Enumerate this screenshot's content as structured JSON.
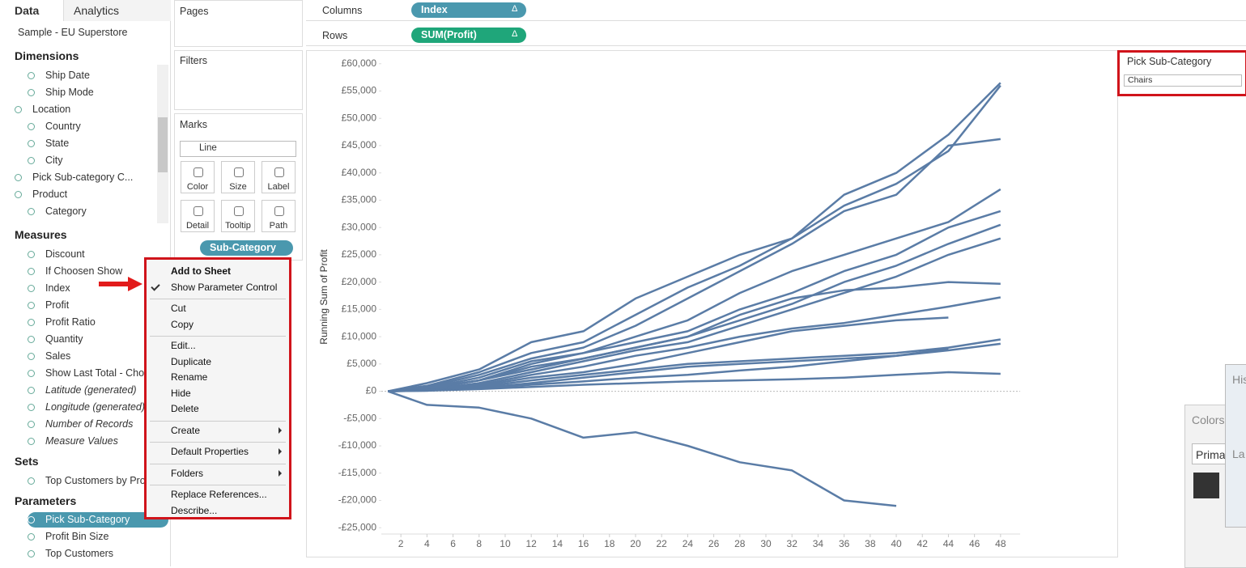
{
  "tabs": [
    "Data",
    "Analytics"
  ],
  "source": "Sample - EU Superstore",
  "dimensions": {
    "title": "Dimensions",
    "items": [
      {
        "label": "Ship Date",
        "level": 1
      },
      {
        "label": "Ship Mode",
        "level": 1
      },
      {
        "label": "Location",
        "level": 0
      },
      {
        "label": "Country",
        "level": 1
      },
      {
        "label": "State",
        "level": 1
      },
      {
        "label": "City",
        "level": 1
      },
      {
        "label": "Pick Sub-category C...",
        "level": 0
      },
      {
        "label": "Product",
        "level": 0
      },
      {
        "label": "Category",
        "level": 1
      }
    ]
  },
  "measures": {
    "title": "Measures",
    "items": [
      {
        "label": "Discount"
      },
      {
        "label": "If Choosen Show"
      },
      {
        "label": "Index"
      },
      {
        "label": "Profit"
      },
      {
        "label": "Profit Ratio"
      },
      {
        "label": "Quantity"
      },
      {
        "label": "Sales"
      },
      {
        "label": "Show Last Total  - Choos"
      },
      {
        "label": "Latitude (generated)",
        "italic": true
      },
      {
        "label": "Longitude (generated)",
        "italic": true
      },
      {
        "label": "Number of Records",
        "italic": true
      },
      {
        "label": "Measure Values",
        "italic": true
      }
    ]
  },
  "sets": {
    "title": "Sets",
    "items": [
      {
        "label": "Top Customers by Profit"
      }
    ]
  },
  "parameters": {
    "title": "Parameters",
    "items": [
      {
        "label": "Pick Sub-Category",
        "selected": true
      },
      {
        "label": "Profit Bin Size"
      },
      {
        "label": "Top Customers"
      }
    ]
  },
  "shelves": {
    "pages": "Pages",
    "filters": "Filters",
    "marks": "Marks",
    "mark_type": "Line",
    "buttons": [
      "Color",
      "Size",
      "Label",
      "Detail",
      "Tooltip",
      "Path"
    ],
    "detail_pill": "Sub-Category",
    "columns": {
      "label": "Columns",
      "pill": "Index",
      "icon": "Δ"
    },
    "rows": {
      "label": "Rows",
      "pill": "SUM(Profit)",
      "icon": "Δ"
    }
  },
  "context_menu": {
    "groups": [
      [
        {
          "label": "Add to Sheet",
          "bold": true
        },
        {
          "label": "Show Parameter Control",
          "checked": true
        }
      ],
      [
        {
          "label": "Cut"
        },
        {
          "label": "Copy"
        }
      ],
      [
        {
          "label": "Edit..."
        },
        {
          "label": "Duplicate"
        },
        {
          "label": "Rename"
        },
        {
          "label": "Hide"
        },
        {
          "label": "Delete"
        }
      ],
      [
        {
          "label": "Create",
          "submenu": true
        }
      ],
      [
        {
          "label": "Default Properties",
          "submenu": true
        }
      ],
      [
        {
          "label": "Folders",
          "submenu": true
        }
      ],
      [
        {
          "label": "Replace References..."
        },
        {
          "label": "Describe..."
        }
      ]
    ]
  },
  "parameter_control": {
    "title": "Pick Sub-Category",
    "value": "Chairs"
  },
  "background_windows": {
    "colors": "Colors",
    "primary": "Prima",
    "history": "His",
    "layers": "La"
  },
  "chart_data": {
    "type": "line",
    "y_label": "Running Sum of Profit",
    "color": "#5a7ca6",
    "grid": false,
    "x": [
      1,
      4,
      8,
      12,
      16,
      20,
      24,
      28,
      32,
      36,
      40,
      44,
      48
    ],
    "xlim": [
      0.5,
      49.5
    ],
    "xticks": [
      2,
      4,
      6,
      8,
      10,
      12,
      14,
      16,
      18,
      20,
      22,
      24,
      26,
      28,
      30,
      32,
      34,
      36,
      38,
      40,
      42,
      44,
      46,
      48
    ],
    "ylim": [
      -26000,
      61000
    ],
    "yticks": [
      {
        "value": -25000,
        "label": "-£25,000"
      },
      {
        "value": -20000,
        "label": "-£20,000"
      },
      {
        "value": -15000,
        "label": "-£15,000"
      },
      {
        "value": -10000,
        "label": "-£10,000"
      },
      {
        "value": -5000,
        "label": "-£5,000"
      },
      {
        "value": 0,
        "label": "£0"
      },
      {
        "value": 5000,
        "label": "£5,000"
      },
      {
        "value": 10000,
        "label": "£10,000"
      },
      {
        "value": 15000,
        "label": "£15,000"
      },
      {
        "value": 20000,
        "label": "£20,000"
      },
      {
        "value": 25000,
        "label": "£25,000"
      },
      {
        "value": 30000,
        "label": "£30,000"
      },
      {
        "value": 35000,
        "label": "£35,000"
      },
      {
        "value": 40000,
        "label": "£40,000"
      },
      {
        "value": 45000,
        "label": "£45,000"
      },
      {
        "value": 50000,
        "label": "£50,000"
      },
      {
        "value": 55000,
        "label": "£55,000"
      },
      {
        "value": 60000,
        "label": "£60,000"
      }
    ],
    "series": [
      {
        "values": [
          0,
          1500,
          4000,
          9000,
          11000,
          17000,
          21000,
          25000,
          28000,
          36000,
          40000,
          47000,
          56500
        ]
      },
      {
        "values": [
          0,
          1000,
          3500,
          7000,
          9000,
          14000,
          19000,
          23000,
          28000,
          34000,
          38000,
          44000,
          56000
        ]
      },
      {
        "values": [
          0,
          800,
          3000,
          6000,
          8000,
          12000,
          17000,
          22000,
          27000,
          33000,
          36000,
          45000,
          46200
        ]
      },
      {
        "values": [
          0,
          500,
          2000,
          5000,
          7000,
          10000,
          13000,
          18000,
          22000,
          25000,
          28000,
          31000,
          37000
        ]
      },
      {
        "values": [
          0,
          600,
          2500,
          5500,
          7000,
          9000,
          11000,
          15000,
          18000,
          22000,
          25000,
          30000,
          33000
        ]
      },
      {
        "values": [
          0,
          400,
          2000,
          4500,
          6000,
          8000,
          10000,
          13000,
          16000,
          20000,
          23000,
          27000,
          30500
        ]
      },
      {
        "values": [
          0,
          300,
          1500,
          3500,
          5500,
          7500,
          9000,
          12000,
          15000,
          18000,
          21000,
          25000,
          28000
        ]
      },
      {
        "values": [
          0,
          500,
          2000,
          4000,
          6000,
          8000,
          10000,
          14000,
          17000,
          18500,
          19000,
          20000,
          19700
        ]
      },
      {
        "values": [
          0,
          300,
          1200,
          3000,
          4500,
          6500,
          8000,
          10000,
          11500,
          12500,
          14000,
          15500,
          17200
        ]
      },
      {
        "values": [
          0,
          200,
          1000,
          2500,
          3500,
          5000,
          7000,
          9000,
          11000,
          12000,
          13000,
          13500,
          null
        ]
      },
      {
        "values": [
          0,
          200,
          800,
          2000,
          3000,
          4000,
          5000,
          5500,
          6000,
          6500,
          7000,
          8000,
          9500
        ]
      },
      {
        "values": [
          0,
          100,
          600,
          1500,
          2500,
          3500,
          4500,
          5000,
          5500,
          6000,
          6500,
          7500,
          8700
        ]
      },
      {
        "values": [
          0,
          200,
          500,
          1200,
          1800,
          2500,
          3000,
          3800,
          4500,
          5500,
          6500,
          7800,
          null
        ]
      },
      {
        "values": [
          0,
          100,
          400,
          800,
          1200,
          1500,
          1800,
          2000,
          2200,
          2500,
          3000,
          3500,
          3200
        ]
      },
      {
        "values": [
          0,
          -2500,
          -3000,
          -5000,
          -8500,
          -7500,
          -10000,
          -13000,
          -14500,
          -20000,
          -21000,
          null,
          null
        ]
      }
    ]
  }
}
